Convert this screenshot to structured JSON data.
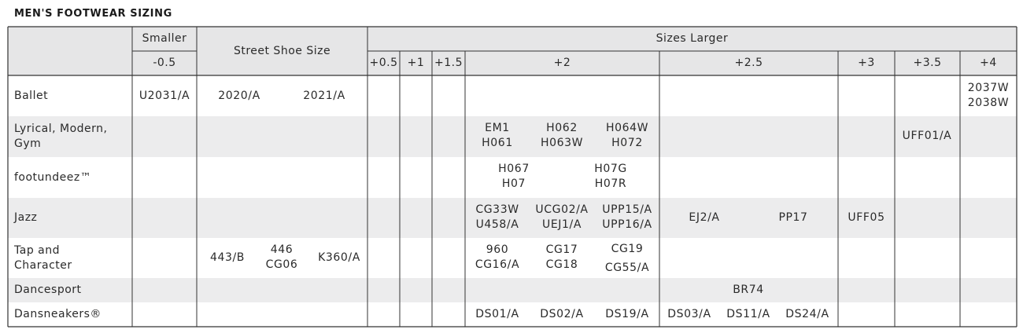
{
  "title": "MEN'S FOOTWEAR SIZING",
  "header": {
    "smaller": "Smaller",
    "street": "Street Shoe Size",
    "larger": "Sizes Larger",
    "cols": [
      "-0.5",
      "+0.5",
      "+1",
      "+1.5",
      "+2",
      "+2.5",
      "+3",
      "+3.5",
      "+4"
    ]
  },
  "rows": [
    {
      "label": "Ballet",
      "items": [
        {
          "text": "U2031/A"
        },
        {
          "text": "2020/A"
        },
        {
          "text": "2021/A"
        },
        {
          "text": "2037W\n2038W"
        }
      ]
    },
    {
      "label": "Lyrical, Modern,\nGym",
      "items": [
        {
          "text": "EM1\nH061"
        },
        {
          "text": "H062\nH063W"
        },
        {
          "text": "H064W\nH072"
        },
        {
          "text": "UFF01/A"
        }
      ]
    },
    {
      "label": "footundeez™",
      "items": [
        {
          "text": "H067\nH07"
        },
        {
          "text": "H07G\nH07R"
        }
      ]
    },
    {
      "label": "Jazz",
      "items": [
        {
          "text": "CG33W\nU458/A"
        },
        {
          "text": "UCG02/A\nUEJ1/A"
        },
        {
          "text": "UPP15/A\nUPP16/A"
        },
        {
          "text": "EJ2/A"
        },
        {
          "text": "PP17"
        },
        {
          "text": "UFF05"
        }
      ]
    },
    {
      "label": "Tap and\nCharacter",
      "items": [
        {
          "text": "443/B"
        },
        {
          "text": "446\nCG06"
        },
        {
          "text": "K360/A"
        },
        {
          "text": "960\nCG16/A"
        },
        {
          "text": "CG17\nCG18"
        },
        {
          "text": "CG19\n\nCG55/A"
        }
      ]
    },
    {
      "label": "Dancesport",
      "items": [
        {
          "text": "BR74"
        }
      ]
    },
    {
      "label": "Dansneakers®",
      "items": [
        {
          "text": "DS01/A"
        },
        {
          "text": "DS02/A"
        },
        {
          "text": "DS19/A"
        },
        {
          "text": "DS03/A"
        },
        {
          "text": "DS11/A"
        },
        {
          "text": "DS24/A"
        }
      ]
    }
  ],
  "colors": {
    "header_bg": "#e6e6e7",
    "band_bg": "#ececed",
    "border": "#333333",
    "text": "#2a2a2a"
  }
}
